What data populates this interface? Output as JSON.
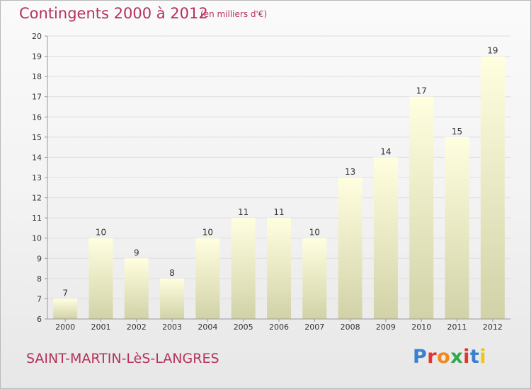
{
  "header": {
    "title": "Contingents 2000 à 2012",
    "subtitle": "(en milliers d'€)"
  },
  "footer": {
    "commune": "SAINT-MARTIN-LèS-LANGRES",
    "brand": "Proxiti",
    "brand_colors": [
      "#3a7fd0",
      "#e3342f",
      "#f08a1c",
      "#2fa84f",
      "#e3342f",
      "#3a7fd0",
      "#f0c419"
    ]
  },
  "chart_data": {
    "type": "bar",
    "title": "Contingents 2000 à 2012",
    "subtitle": "(en milliers d'€)",
    "xlabel": "",
    "ylabel": "",
    "categories": [
      "2000",
      "2001",
      "2002",
      "2003",
      "2004",
      "2005",
      "2006",
      "2007",
      "2008",
      "2009",
      "2010",
      "2011",
      "2012"
    ],
    "values": [
      7,
      10,
      9,
      8,
      10,
      11,
      11,
      10,
      13,
      14,
      17,
      15,
      19
    ],
    "data_labels": [
      "7",
      "10",
      "9",
      "8",
      "10",
      "11",
      "11",
      "10",
      "13",
      "14",
      "17",
      "15",
      "19"
    ],
    "ylim": [
      6,
      20
    ],
    "yticks": [
      "6",
      "7",
      "8",
      "9",
      "10",
      "11",
      "12",
      "13",
      "14",
      "15",
      "16",
      "17",
      "18",
      "19",
      "20"
    ],
    "grid": true,
    "colors": {
      "bar_top": "#ffffe0",
      "bar_bottom": "#d2d2a8",
      "grid": "#dedede",
      "axis": "#999999",
      "text": "#333333"
    }
  }
}
